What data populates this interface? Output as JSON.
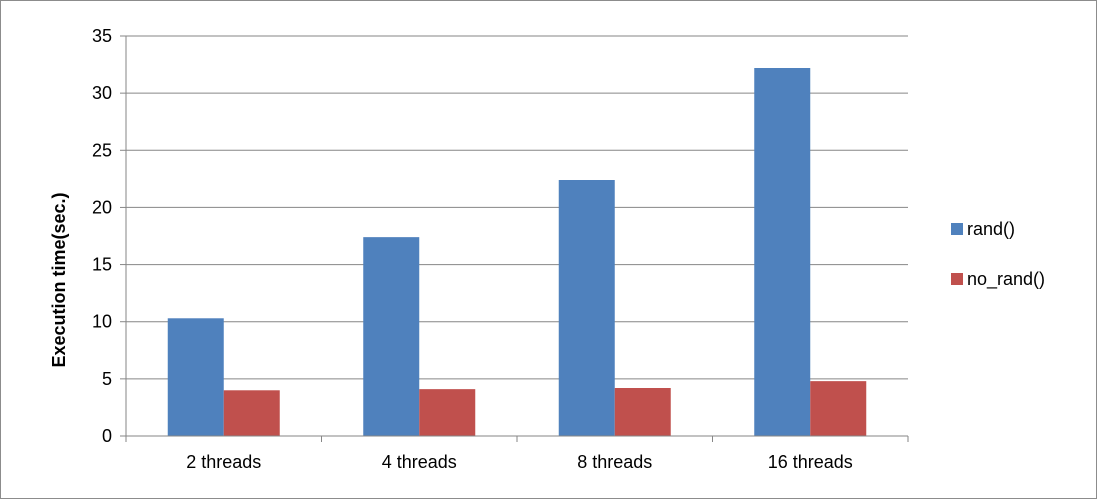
{
  "chart_data": {
    "type": "bar",
    "title": "",
    "xlabel": "",
    "ylabel": "Execution time(sec.)",
    "categories": [
      "2 threads",
      "4 threads",
      "8 threads",
      "16 threads"
    ],
    "series": [
      {
        "name": "rand()",
        "color": "#4f81bd",
        "values": [
          10.3,
          17.4,
          22.4,
          32.2
        ]
      },
      {
        "name": "no_rand()",
        "color": "#c0504d",
        "values": [
          4.0,
          4.1,
          4.2,
          4.8
        ]
      }
    ],
    "ylim": [
      0,
      35
    ],
    "yticks": [
      "0",
      "5",
      "10",
      "15",
      "20",
      "25",
      "30",
      "35"
    ],
    "grid": true,
    "legend_position": "right"
  }
}
